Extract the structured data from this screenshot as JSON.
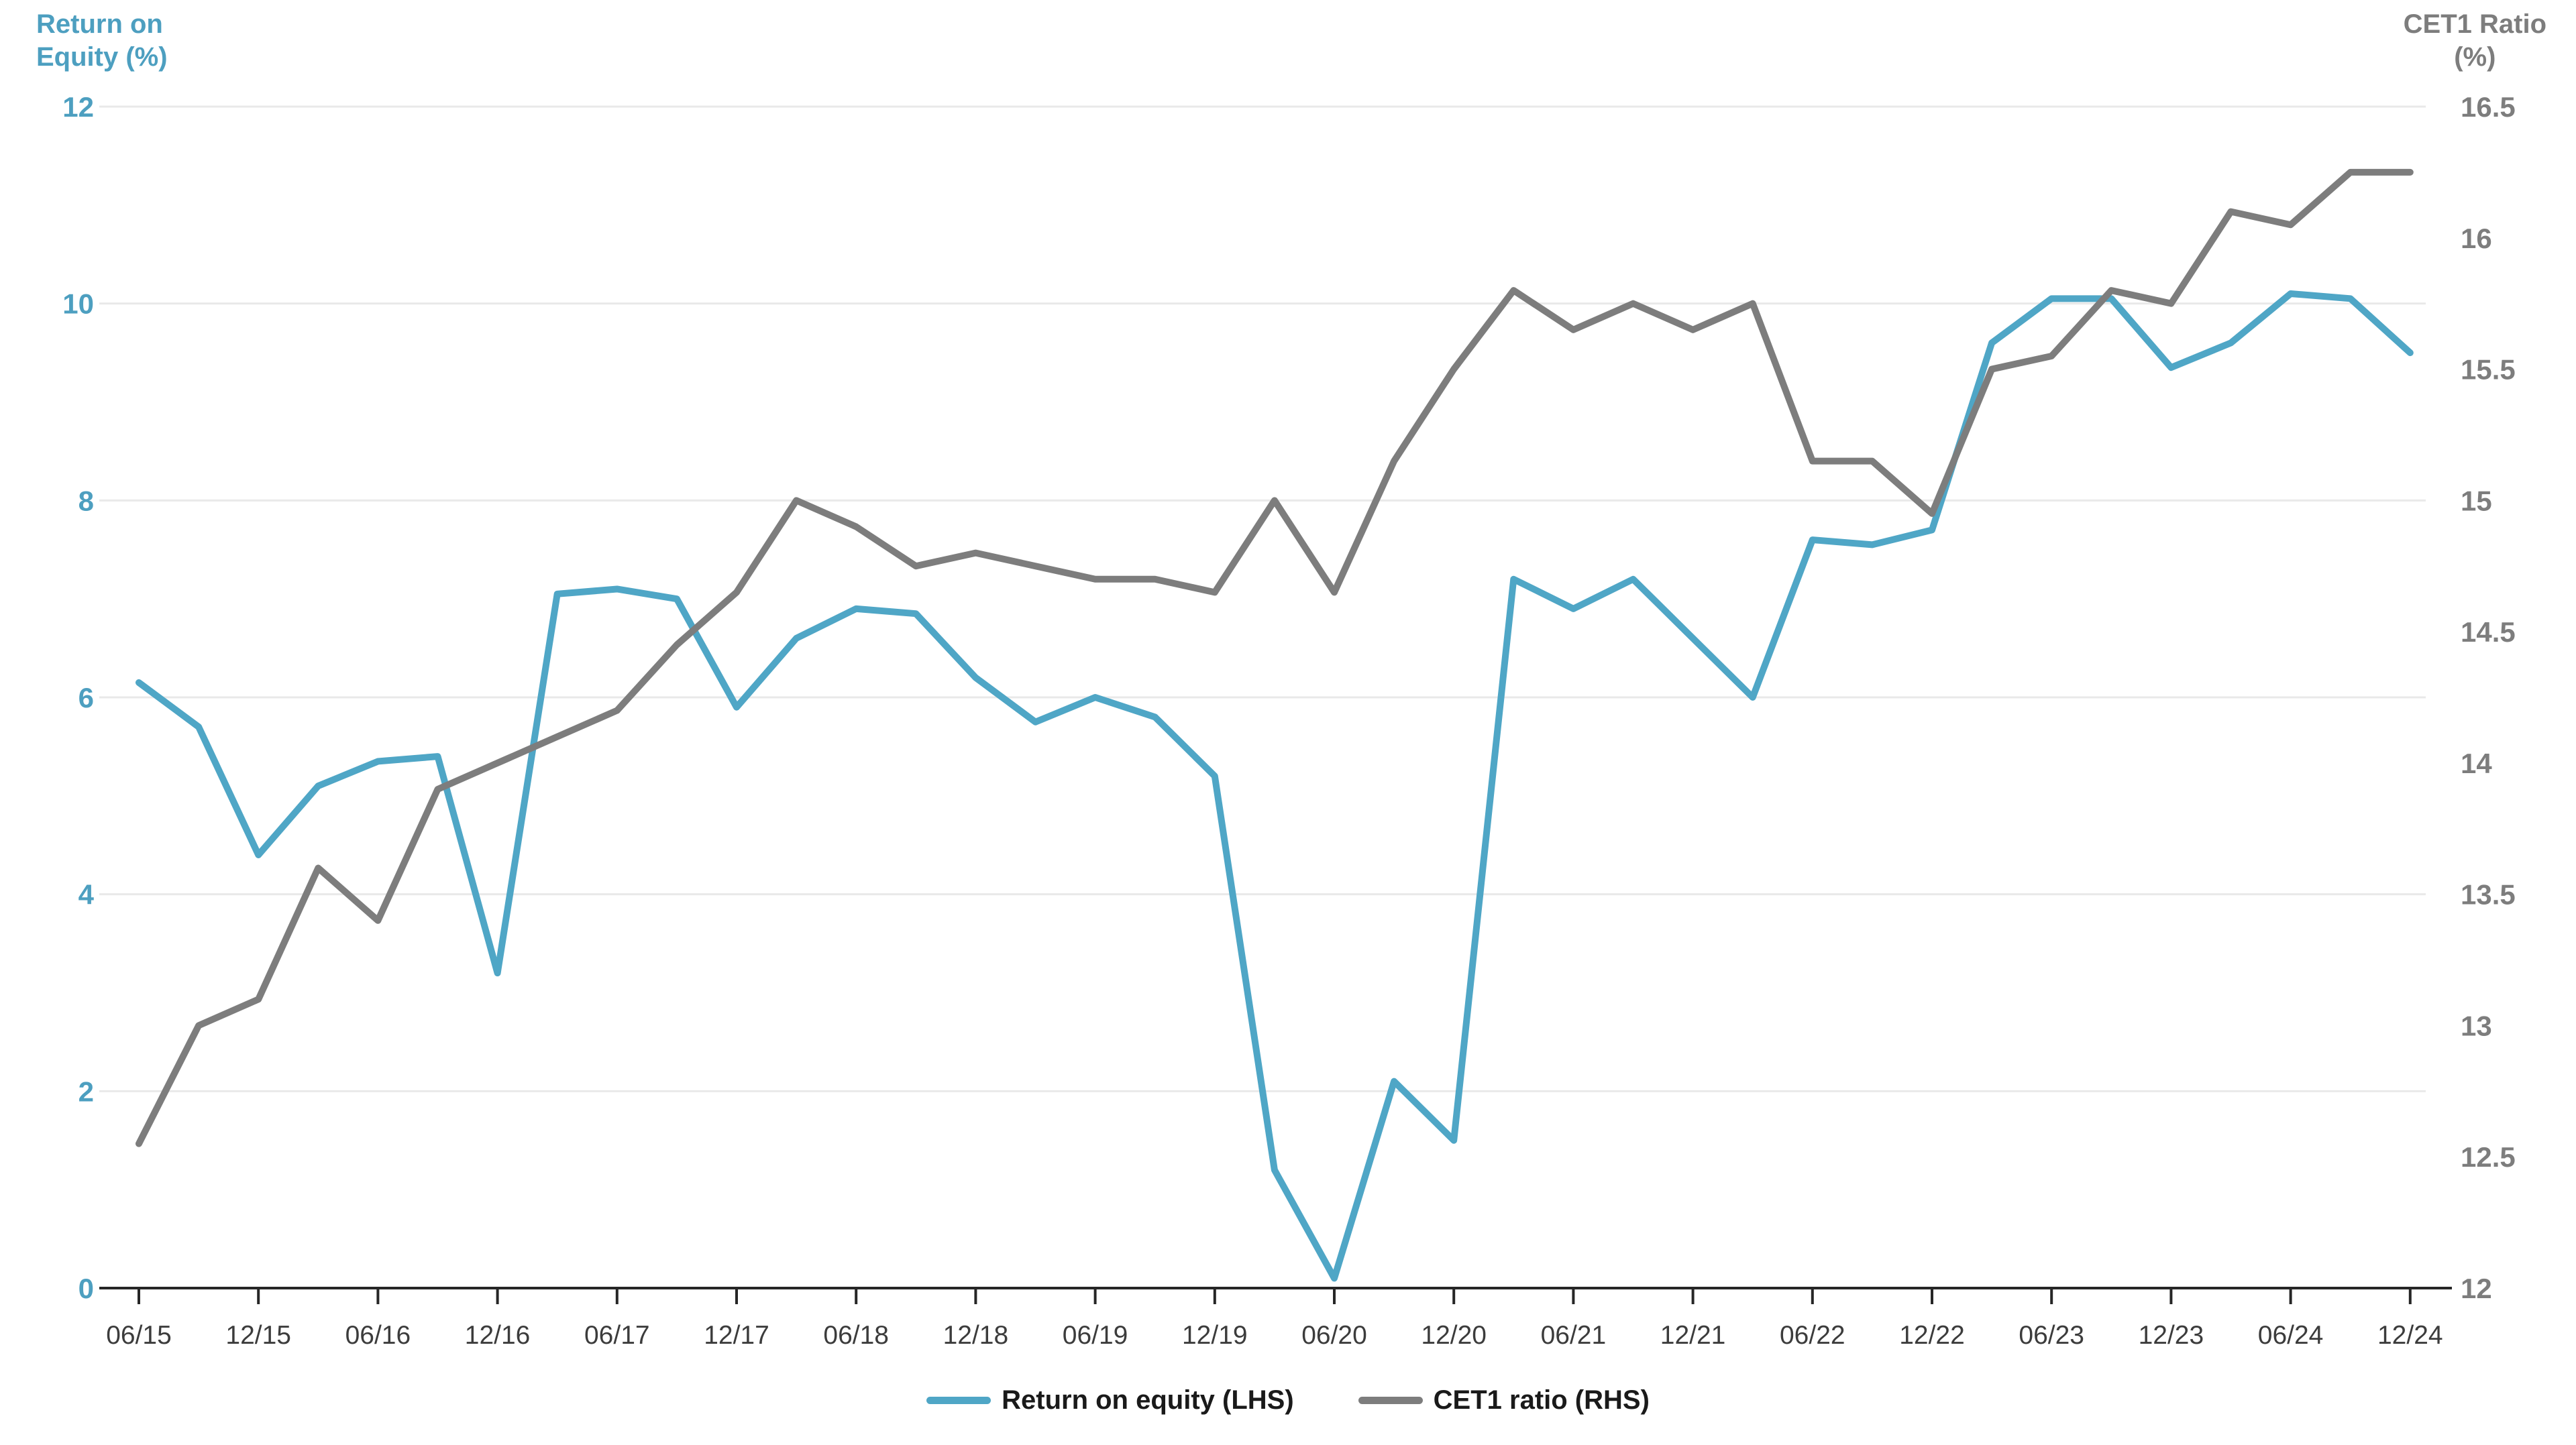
{
  "axes": {
    "left": {
      "title_lines": [
        "Return on",
        "Equity (%)"
      ],
      "ticks": [
        12,
        10,
        8,
        6,
        4,
        2,
        0
      ],
      "range": [
        0,
        12
      ],
      "color": "#4d9fc0"
    },
    "right": {
      "title_lines": [
        "CET1 Ratio",
        "(%)"
      ],
      "ticks": [
        16.5,
        16,
        15.5,
        15,
        14.5,
        14,
        13.5,
        13,
        12.5,
        12
      ],
      "range": [
        12,
        16.5
      ],
      "color": "#7d7d7d"
    },
    "x": {
      "tick_labels": [
        "06/15",
        "12/15",
        "06/16",
        "12/16",
        "06/17",
        "12/17",
        "06/18",
        "12/18",
        "06/19",
        "12/19",
        "06/20",
        "12/20",
        "06/21",
        "12/21",
        "06/22",
        "12/22",
        "06/23",
        "12/23",
        "06/24",
        "12/24"
      ],
      "label_color": "#3c3c3c"
    }
  },
  "legend": {
    "items": [
      {
        "label": "Return on equity (LHS)",
        "color": "#4fa6c6"
      },
      {
        "label": "CET1 ratio (RHS)",
        "color": "#7d7d7d"
      }
    ]
  },
  "colors": {
    "background": "#ffffff",
    "grid": "#e9e9e9",
    "axis_line": "#262626",
    "roe_line": "#4fa6c6",
    "cet1_line": "#7d7d7d"
  },
  "chart_data": {
    "type": "line",
    "x": [
      "06/15",
      "09/15",
      "12/15",
      "03/16",
      "06/16",
      "09/16",
      "12/16",
      "03/17",
      "06/17",
      "09/17",
      "12/17",
      "03/18",
      "06/18",
      "09/18",
      "12/18",
      "03/19",
      "06/19",
      "09/19",
      "12/19",
      "03/20",
      "06/20",
      "09/20",
      "12/20",
      "03/21",
      "06/21",
      "09/21",
      "12/21",
      "03/22",
      "06/22",
      "09/22",
      "12/22",
      "03/23",
      "06/23",
      "09/23",
      "12/23",
      "03/24",
      "06/24",
      "09/24",
      "12/24"
    ],
    "x_shown_tick_labels": [
      "06/15",
      "12/15",
      "06/16",
      "12/16",
      "06/17",
      "12/17",
      "06/18",
      "12/18",
      "06/19",
      "12/19",
      "06/20",
      "12/20",
      "06/21",
      "12/21",
      "06/22",
      "12/22",
      "06/23",
      "12/23",
      "06/24",
      "12/24"
    ],
    "series": [
      {
        "name": "Return on equity (LHS)",
        "axis": "left",
        "color": "#4fa6c6",
        "values": [
          6.15,
          5.7,
          4.4,
          5.1,
          5.35,
          5.4,
          3.2,
          7.05,
          7.1,
          7.0,
          5.9,
          6.6,
          6.9,
          6.85,
          6.2,
          5.75,
          6.0,
          5.8,
          5.2,
          1.2,
          0.1,
          2.1,
          1.5,
          7.2,
          6.9,
          7.2,
          6.6,
          6.0,
          7.6,
          7.55,
          7.7,
          9.6,
          10.05,
          10.05,
          9.35,
          9.6,
          10.1,
          10.05,
          9.5
        ]
      },
      {
        "name": "CET1 ratio (RHS)",
        "axis": "right",
        "color": "#7d7d7d",
        "values": [
          12.55,
          13.0,
          13.1,
          13.6,
          13.4,
          13.9,
          14.0,
          14.1,
          14.2,
          14.45,
          14.65,
          15.0,
          14.9,
          14.75,
          14.8,
          14.75,
          14.7,
          14.7,
          14.65,
          15.0,
          14.65,
          15.15,
          15.5,
          15.8,
          15.65,
          15.75,
          15.65,
          15.75,
          15.15,
          15.15,
          14.95,
          15.5,
          15.55,
          15.8,
          15.75,
          16.1,
          16.05,
          16.25,
          16.25
        ]
      }
    ],
    "left_ylim": [
      0,
      12
    ],
    "right_ylim": [
      12,
      16.5
    ],
    "grid": "horizontal, at left-axis ticks only",
    "legend_position": "bottom-center"
  }
}
